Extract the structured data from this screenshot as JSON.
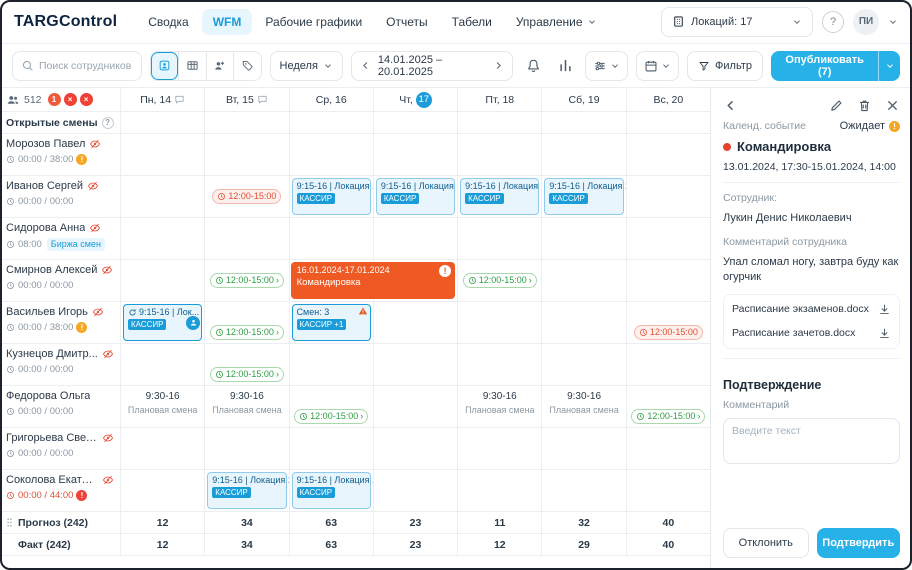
{
  "brand": "TARGControl",
  "colors": {
    "accent": "#26b1e8",
    "active_nav_bg": "#e7f6fd",
    "today_badge": "#1a9cd8",
    "event_orange": "#ef5a24",
    "pill_green": "#2e9e43",
    "pill_red": "#e05038",
    "warning_orange": "#f5a623",
    "warning_red": "#ef4136"
  },
  "nav": {
    "items": [
      {
        "label": "Сводка"
      },
      {
        "label": "WFM",
        "active": true
      },
      {
        "label": "Рабочие графики"
      },
      {
        "label": "Отчеты"
      },
      {
        "label": "Табели"
      },
      {
        "label": "Управление",
        "dropdown": true
      }
    ],
    "location_selector": "Локаций: 17",
    "help": "?",
    "avatar_initials": "ПИ"
  },
  "toolbar": {
    "search_placeholder": "Поиск сотрудников",
    "view_mode": "Неделя",
    "date_range": "14.01.2025 – 20.01.2025",
    "filter_label": "Фильтр",
    "publish_label": "Опубликовать (7)"
  },
  "grid": {
    "people_count": "512",
    "header_badges": [
      {
        "bg": "#f0593a",
        "glyph": "1"
      },
      {
        "bg": "#ef4136",
        "glyph": "×"
      },
      {
        "bg": "#ef4136",
        "glyph": "×"
      }
    ],
    "open_shifts_label": "Открытые смены",
    "days": [
      {
        "dow": "Пн",
        "num": "14",
        "comment": true
      },
      {
        "dow": "Вт",
        "num": "15",
        "comment": true
      },
      {
        "dow": "Ср",
        "num": "16"
      },
      {
        "dow": "Чт",
        "num": "17",
        "today": true
      },
      {
        "dow": "Пт",
        "num": "18"
      },
      {
        "dow": "Сб",
        "num": "19"
      },
      {
        "dow": "Вс",
        "num": "20"
      }
    ],
    "employees": [
      {
        "name": "Морозов Павел",
        "hidden": true,
        "hours": "00:00 / 38:00",
        "warn_badge": "orange",
        "cells": [
          [],
          [],
          [],
          [],
          [],
          [],
          []
        ]
      },
      {
        "name": "Иванов Сергей",
        "hidden": true,
        "hours": "00:00 / 00:00",
        "cells": [
          [],
          [
            {
              "type": "pill",
              "color": "red",
              "text": "12:00-15:00",
              "pos": "c"
            }
          ],
          [
            {
              "type": "shift",
              "time": "9:15-16 | Локация 1",
              "tag": "КАССИР"
            }
          ],
          [
            {
              "type": "shift",
              "time": "9:15-16 | Локация 1",
              "tag": "КАССИР"
            }
          ],
          [
            {
              "type": "shift",
              "time": "9:15-16 | Локация 1",
              "tag": "КАССИР"
            }
          ],
          [
            {
              "type": "shift",
              "time": "9:15-16 | Локация 1",
              "tag": "КАССИР"
            }
          ],
          []
        ]
      },
      {
        "name": "Сидорова Анна",
        "hidden": true,
        "hours": "08:00",
        "exchange": "Биржа смен",
        "cells": [
          [],
          [],
          [],
          [],
          [],
          [],
          []
        ]
      },
      {
        "name": "Смирнов Алексей",
        "hidden": true,
        "hours": "00:00 / 00:00",
        "cells": [
          [],
          [
            {
              "type": "pill",
              "color": "green",
              "text": "12:00-15:00",
              "chev": true,
              "pos": "c"
            }
          ],
          [],
          [],
          [
            {
              "type": "pill",
              "color": "green",
              "text": "12:00-15:00",
              "chev": true,
              "pos": "c"
            }
          ],
          [],
          []
        ],
        "span_items": [
          {
            "col": 2,
            "span": 2,
            "type": "event",
            "dates": "16.01.2024-17.01.2024",
            "title": "Командировка"
          }
        ]
      },
      {
        "name": "Васильев Игорь",
        "hidden": true,
        "hours": "00:00 / 38:00",
        "warn_badge": "orange",
        "cells": [
          [
            {
              "type": "shift",
              "time": "9:15-16 | Лок...",
              "tag": "КАССИР",
              "selected": true,
              "refresh": true,
              "person": true
            }
          ],
          [
            {
              "type": "pill",
              "color": "green",
              "text": "12:00-15:00",
              "chev": true,
              "pos": "b"
            }
          ],
          [
            {
              "type": "shift",
              "time": "Смен: 3",
              "tag": "КАССИР +1",
              "selected": true,
              "warn": true
            }
          ],
          [],
          [],
          [],
          [
            {
              "type": "pill",
              "color": "red",
              "text": "12:00-15:00",
              "pos": "b"
            }
          ]
        ]
      },
      {
        "name": "Кузнецов Дмитр...",
        "hidden": true,
        "hours": "00:00 / 00:00",
        "cells": [
          [],
          [
            {
              "type": "pill",
              "color": "green",
              "text": "12:00-15:00",
              "chev": true,
              "pos": "b"
            }
          ],
          [],
          [],
          [],
          [],
          []
        ]
      },
      {
        "name": "Федорова Ольга",
        "hidden": false,
        "hours": "00:00 / 00:00",
        "cells": [
          [
            {
              "type": "plain",
              "time": "9:30-16",
              "label": "Плановая смена"
            }
          ],
          [
            {
              "type": "plain",
              "time": "9:30-16",
              "label": "Плановая смена"
            }
          ],
          [
            {
              "type": "pill",
              "color": "green",
              "text": "12:00-15:00",
              "chev": true,
              "pos": "b"
            }
          ],
          [],
          [
            {
              "type": "plain",
              "time": "9:30-16",
              "label": "Плановая смена"
            }
          ],
          [
            {
              "type": "plain",
              "time": "9:30-16",
              "label": "Плановая смена"
            }
          ],
          [
            {
              "type": "pill",
              "color": "green",
              "text": "12:00-15:00",
              "chev": true,
              "pos": "b"
            }
          ]
        ]
      },
      {
        "name": "Григорьева Свет...",
        "hidden": true,
        "hours": "00:00 / 00:00",
        "cells": [
          [],
          [],
          [],
          [],
          [],
          [],
          []
        ]
      },
      {
        "name": "Соколова Екатер...",
        "hidden": true,
        "hours": "00:00 / 44:00",
        "warn_badge": "red",
        "hours_red": true,
        "cells": [
          [],
          [
            {
              "type": "shift",
              "time": "9:15-16 | Локация 1",
              "tag": "КАССИР"
            }
          ],
          [
            {
              "type": "shift",
              "time": "9:15-16 | Локация 1",
              "tag": "КАССИР"
            }
          ],
          [],
          [],
          [],
          []
        ]
      }
    ],
    "summary": [
      {
        "label": "Прогноз (242)",
        "drag": true,
        "values": [
          "12",
          "34",
          "63",
          "23",
          "11",
          "32",
          "40"
        ]
      },
      {
        "label": "Факт (242)",
        "values": [
          "12",
          "34",
          "63",
          "23",
          "12",
          "29",
          "40"
        ]
      }
    ]
  },
  "panel": {
    "type_label": "Календ. событие",
    "status": "Ожидает",
    "event_title": "Командировка",
    "event_dates": "13.01.2024, 17:30-15.01.2024, 14:00",
    "employee_label": "Сотрудник:",
    "employee_name": "Лукин Денис Николаевич",
    "employee_comment_label": "Комментарий сотрудника",
    "employee_comment": "Упал сломал ногу, завтра буду как огурчик",
    "files": [
      "Расписание экзаменов.docx",
      "Расписание зачетов.docx"
    ],
    "confirmation_title": "Подтверждение",
    "comment_label": "Комментарий",
    "comment_placeholder": "Введите текст",
    "reject_label": "Отклонить",
    "approve_label": "Подтвердить"
  }
}
